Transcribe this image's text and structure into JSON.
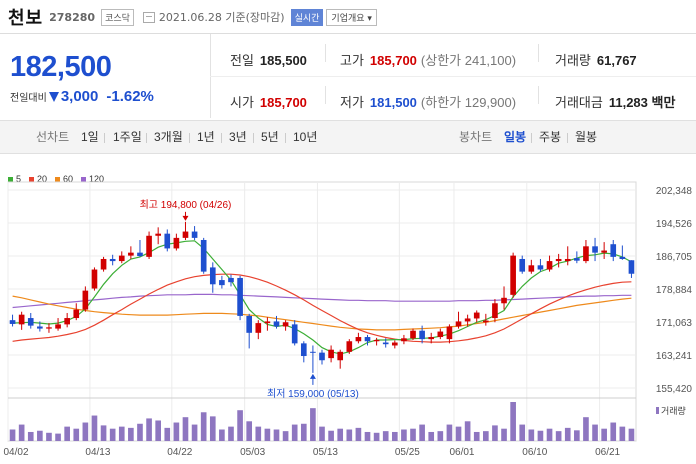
{
  "header": {
    "name": "천보",
    "code": "278280",
    "market": "코스닥",
    "date": "2021.06.28 기준(장마감)",
    "live_btn": "실시간",
    "info_btn": "기업개요 ▾"
  },
  "price": {
    "current": "182,500",
    "change_label": "전일대비",
    "change": "3,000",
    "change_pct": "-1.62%",
    "direction": "down"
  },
  "stats": {
    "prev_close": {
      "label": "전일",
      "value": "185,500"
    },
    "high": {
      "label": "고가",
      "value": "185,700",
      "sub": "(상한가 241,100)"
    },
    "volume": {
      "label": "거래량",
      "value": "61,767"
    },
    "open": {
      "label": "시가",
      "value": "185,700"
    },
    "low": {
      "label": "저가",
      "value": "181,500",
      "sub": "(하한가 129,900)"
    },
    "amount": {
      "label": "거래대금",
      "value": "11,283 백만"
    }
  },
  "toolbar": {
    "line_chart": "선차트",
    "periods": [
      "1일",
      "1주일",
      "3개월",
      "1년",
      "3년",
      "5년",
      "10년"
    ],
    "candle_chart": "봉차트",
    "candle_periods": [
      "일봉",
      "주봉",
      "월봉"
    ],
    "candle_selected": "일봉"
  },
  "colors": {
    "up": "#d10000",
    "down": "#1e4fcf",
    "ma5": "#3cae36",
    "ma20": "#e8422f",
    "ma60": "#ee8a1c",
    "ma120": "#9966cc",
    "volume": "#8e76c0"
  },
  "chart_data": {
    "type": "candlestick",
    "moving_averages": [
      {
        "name": "5",
        "color": "#3cae36"
      },
      {
        "name": "20",
        "color": "#e8422f"
      },
      {
        "name": "60",
        "color": "#ee8a1c"
      },
      {
        "name": "120",
        "color": "#9966cc"
      }
    ],
    "y_ticks": [
      202348,
      194526,
      186705,
      178884,
      171063,
      163241,
      155420
    ],
    "ylim": [
      155420,
      202348
    ],
    "x_ticks": [
      "04/02",
      "04/13",
      "04/22",
      "05/03",
      "05/13",
      "05/25",
      "06/01",
      "06/10",
      "06/21"
    ],
    "annotations": {
      "high": {
        "label": "최고 194,800 (04/26)",
        "value": 194800,
        "date": "04/26"
      },
      "low": {
        "label": "최저 159,000 (05/13)",
        "value": 159000,
        "date": "05/13"
      }
    },
    "volume_label": "거래량",
    "candles": [
      {
        "o": 171500,
        "h": 172800,
        "l": 170000,
        "c": 170600
      },
      {
        "o": 170500,
        "h": 173500,
        "l": 169200,
        "c": 172800
      },
      {
        "o": 172000,
        "h": 173200,
        "l": 169500,
        "c": 170200
      },
      {
        "o": 170000,
        "h": 171200,
        "l": 168800,
        "c": 169500
      },
      {
        "o": 169500,
        "h": 170800,
        "l": 168500,
        "c": 169800
      },
      {
        "o": 169500,
        "h": 172000,
        "l": 169000,
        "c": 170500
      },
      {
        "o": 170500,
        "h": 173200,
        "l": 169800,
        "c": 172000
      },
      {
        "o": 172000,
        "h": 175500,
        "l": 171500,
        "c": 174000
      },
      {
        "o": 174000,
        "h": 179500,
        "l": 173500,
        "c": 178500
      },
      {
        "o": 179000,
        "h": 184000,
        "l": 178500,
        "c": 183500
      },
      {
        "o": 183500,
        "h": 186500,
        "l": 183000,
        "c": 186000
      },
      {
        "o": 186000,
        "h": 187000,
        "l": 184500,
        "c": 185500
      },
      {
        "o": 185500,
        "h": 187800,
        "l": 185000,
        "c": 186800
      },
      {
        "o": 186800,
        "h": 189000,
        "l": 186000,
        "c": 187500
      },
      {
        "o": 187500,
        "h": 190500,
        "l": 186500,
        "c": 186700
      },
      {
        "o": 186500,
        "h": 192500,
        "l": 186000,
        "c": 191500
      },
      {
        "o": 191500,
        "h": 193500,
        "l": 189500,
        "c": 192000
      },
      {
        "o": 192000,
        "h": 193000,
        "l": 187800,
        "c": 188500
      },
      {
        "o": 188500,
        "h": 192000,
        "l": 188000,
        "c": 191000
      },
      {
        "o": 191000,
        "h": 194800,
        "l": 190500,
        "c": 192500
      },
      {
        "o": 192500,
        "h": 193800,
        "l": 190500,
        "c": 191000
      },
      {
        "o": 190500,
        "h": 191000,
        "l": 182500,
        "c": 183000
      },
      {
        "o": 184000,
        "h": 185200,
        "l": 178000,
        "c": 180000
      },
      {
        "o": 181000,
        "h": 182000,
        "l": 179000,
        "c": 179800
      },
      {
        "o": 181500,
        "h": 182300,
        "l": 179500,
        "c": 180500
      },
      {
        "o": 181500,
        "h": 182000,
        "l": 171500,
        "c": 172500
      },
      {
        "o": 172500,
        "h": 173000,
        "l": 164800,
        "c": 168500
      },
      {
        "o": 168500,
        "h": 171500,
        "l": 167000,
        "c": 170800
      },
      {
        "o": 170800,
        "h": 172200,
        "l": 169000,
        "c": 171200
      },
      {
        "o": 171200,
        "h": 172500,
        "l": 169500,
        "c": 170000
      },
      {
        "o": 170000,
        "h": 171500,
        "l": 169000,
        "c": 171000
      },
      {
        "o": 170500,
        "h": 171500,
        "l": 165500,
        "c": 166000
      },
      {
        "o": 166000,
        "h": 166500,
        "l": 161500,
        "c": 163000
      },
      {
        "o": 164000,
        "h": 165500,
        "l": 159000,
        "c": 163800
      },
      {
        "o": 163800,
        "h": 164500,
        "l": 161000,
        "c": 162000
      },
      {
        "o": 162500,
        "h": 165500,
        "l": 161500,
        "c": 164500
      },
      {
        "o": 162000,
        "h": 164500,
        "l": 160000,
        "c": 164000
      },
      {
        "o": 164000,
        "h": 167000,
        "l": 163500,
        "c": 166500
      },
      {
        "o": 166500,
        "h": 168500,
        "l": 166000,
        "c": 167500
      },
      {
        "o": 167500,
        "h": 168000,
        "l": 165500,
        "c": 166500
      },
      {
        "o": 166500,
        "h": 167300,
        "l": 165500,
        "c": 166800
      },
      {
        "o": 166200,
        "h": 167200,
        "l": 165000,
        "c": 165800
      },
      {
        "o": 165500,
        "h": 166700,
        "l": 164800,
        "c": 166200
      },
      {
        "o": 166500,
        "h": 168000,
        "l": 165800,
        "c": 167200
      },
      {
        "o": 167200,
        "h": 169500,
        "l": 166800,
        "c": 169000
      },
      {
        "o": 169000,
        "h": 170200,
        "l": 166000,
        "c": 167000
      },
      {
        "o": 167000,
        "h": 168500,
        "l": 166000,
        "c": 167500
      },
      {
        "o": 167500,
        "h": 169500,
        "l": 167000,
        "c": 168800
      },
      {
        "o": 167000,
        "h": 170500,
        "l": 166000,
        "c": 170000
      },
      {
        "o": 170000,
        "h": 173500,
        "l": 169500,
        "c": 171200
      },
      {
        "o": 171200,
        "h": 172800,
        "l": 170000,
        "c": 171900
      },
      {
        "o": 171900,
        "h": 173800,
        "l": 171000,
        "c": 173300
      },
      {
        "o": 171000,
        "h": 173000,
        "l": 170200,
        "c": 171400
      },
      {
        "o": 172000,
        "h": 176500,
        "l": 171000,
        "c": 175500
      },
      {
        "o": 175500,
        "h": 179500,
        "l": 174000,
        "c": 176800
      },
      {
        "o": 177500,
        "h": 187500,
        "l": 176800,
        "c": 186800
      },
      {
        "o": 186000,
        "h": 186800,
        "l": 182500,
        "c": 183000
      },
      {
        "o": 183000,
        "h": 185800,
        "l": 182500,
        "c": 184500
      },
      {
        "o": 184500,
        "h": 186000,
        "l": 183000,
        "c": 183500
      },
      {
        "o": 183500,
        "h": 186800,
        "l": 183000,
        "c": 185500
      },
      {
        "o": 185500,
        "h": 187200,
        "l": 184000,
        "c": 186000
      },
      {
        "o": 185500,
        "h": 189000,
        "l": 184500,
        "c": 186000
      },
      {
        "o": 186200,
        "h": 187800,
        "l": 185000,
        "c": 185600
      },
      {
        "o": 185500,
        "h": 190500,
        "l": 185000,
        "c": 189000
      },
      {
        "o": 189000,
        "h": 191000,
        "l": 185500,
        "c": 187500
      },
      {
        "o": 187500,
        "h": 190000,
        "l": 186000,
        "c": 188000
      },
      {
        "o": 189500,
        "h": 190500,
        "l": 185500,
        "c": 186500
      },
      {
        "o": 186500,
        "h": 189200,
        "l": 185800,
        "c": 186000
      },
      {
        "o": 185700,
        "h": 185700,
        "l": 181500,
        "c": 182500
      }
    ],
    "ma5": [
      170800,
      170900,
      171000,
      170800,
      170600,
      170800,
      171400,
      172400,
      174200,
      177000,
      180000,
      182500,
      184500,
      186000,
      186500,
      187500,
      188800,
      189500,
      189800,
      190200,
      190300,
      188500,
      186000,
      183500,
      181000,
      177500,
      174000,
      172000,
      170500,
      170000,
      170300,
      169500,
      168300,
      166800,
      165000,
      164000,
      163500,
      164000,
      165000,
      166200,
      166800,
      166800,
      166900,
      166900,
      167100,
      167200,
      167300,
      167700,
      168200,
      169000,
      170000,
      171000,
      171600,
      172600,
      173800,
      177000,
      179500,
      181500,
      183000,
      183800,
      185000,
      185500,
      186200,
      186800,
      187000,
      187400,
      187200,
      186500,
      185300
    ],
    "ma20": [
      166500,
      166800,
      167000,
      167200,
      167400,
      167700,
      168100,
      168600,
      169300,
      170300,
      171500,
      172800,
      174000,
      175300,
      176500,
      177700,
      178800,
      179800,
      180600,
      181300,
      181800,
      182100,
      182300,
      182400,
      182400,
      182200,
      181800,
      181200,
      180500,
      179600,
      178600,
      177500,
      176300,
      175000,
      173800,
      172600,
      171400,
      170300,
      169300,
      168500,
      167900,
      167400,
      167000,
      166700,
      166500,
      166400,
      166300,
      166300,
      166400,
      166600,
      166900,
      167300,
      167800,
      168500,
      169400,
      170600,
      171800,
      173000,
      174200,
      175300,
      176300,
      177200,
      178000,
      178700,
      179300,
      179800,
      180200,
      180500,
      180600
    ],
    "ma60": [
      177200,
      176800,
      176300,
      175800,
      175300,
      174900,
      174500,
      174100,
      173800,
      173500,
      173300,
      173100,
      172900,
      172800,
      172700,
      172700,
      172700,
      172700,
      172800,
      172900,
      173000,
      173100,
      173100,
      173100,
      173000,
      172900,
      172700,
      172500,
      172200,
      171900,
      171600,
      171300,
      171000,
      170700,
      170400,
      170100,
      169800,
      169600,
      169400,
      169300,
      169200,
      169200,
      169200,
      169300,
      169400,
      169500,
      169600,
      169700,
      169900,
      170100,
      170400,
      170700,
      171000,
      171400,
      171800,
      172200,
      172600,
      173000,
      173400,
      173800,
      174200,
      174600,
      175000,
      175300,
      175600,
      175900,
      176200,
      176500,
      176700
    ],
    "ma120": [
      174500,
      174700,
      174900,
      175100,
      175300,
      175500,
      175700,
      175900,
      176100,
      176300,
      176500,
      176700,
      176900,
      177000,
      177200,
      177300,
      177400,
      177500,
      177500,
      177500,
      177600,
      177600,
      177600,
      177500,
      177500,
      177400,
      177300,
      177200,
      177100,
      177000,
      176900,
      176800,
      176700,
      176600,
      176500,
      176400,
      176300,
      176200,
      176200,
      176100,
      176100,
      176100,
      176000,
      176000,
      176000,
      176000,
      176000,
      176000,
      176000,
      176100,
      176100,
      176100,
      176200,
      176200,
      176300,
      176400,
      176500,
      176600,
      176700,
      176800,
      176900,
      177000,
      177100,
      177200,
      177200,
      177300,
      177300,
      177400,
      177400
    ],
    "volume": [
      28,
      40,
      22,
      25,
      20,
      18,
      35,
      30,
      45,
      62,
      38,
      30,
      35,
      32,
      42,
      55,
      50,
      32,
      45,
      58,
      40,
      70,
      60,
      28,
      35,
      75,
      48,
      35,
      30,
      28,
      24,
      40,
      42,
      80,
      35,
      25,
      30,
      28,
      32,
      22,
      20,
      24,
      22,
      28,
      30,
      40,
      22,
      24,
      40,
      35,
      48,
      22,
      24,
      38,
      30,
      95,
      40,
      28,
      25,
      30,
      24,
      32,
      26,
      58,
      40,
      30,
      45,
      35,
      30
    ]
  }
}
